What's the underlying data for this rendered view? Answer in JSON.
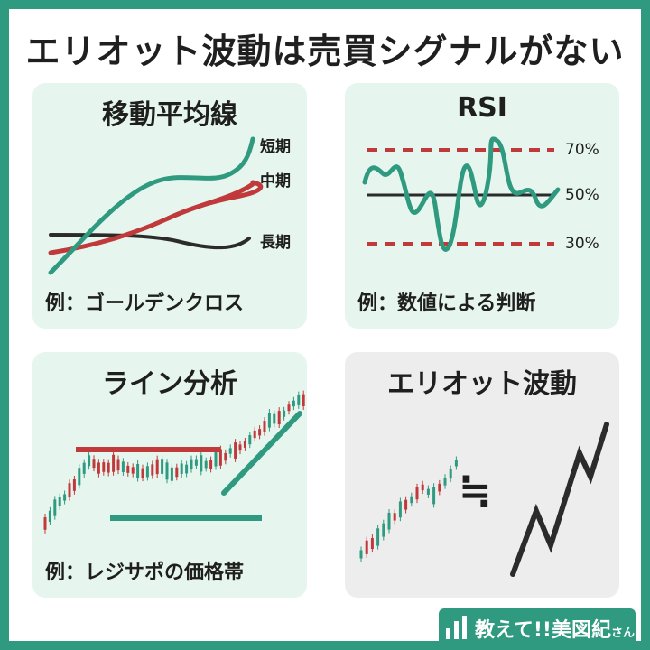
{
  "title": "エリオット波動は売買シグナルがない",
  "panels": {
    "ma": {
      "title": "移動平均線",
      "caption": "例：ゴールデンクロス",
      "labels": {
        "short": "短期",
        "mid": "中期",
        "long": "長期"
      }
    },
    "rsi": {
      "title": "RSI",
      "caption": "例：数値による判断",
      "levels": [
        "70%",
        "50%",
        "30%"
      ]
    },
    "line": {
      "title": "ライン分析",
      "caption": "例：レジサポの価格帯"
    },
    "elliott": {
      "title": "エリオット波動",
      "symbol": "≒"
    }
  },
  "logo": {
    "text": "教えて!!美図紀",
    "suffix": "さん"
  },
  "colors": {
    "frame": "#2f9a80",
    "teal": "#2f9a80",
    "red": "#c0393b",
    "dark": "#2b2b2b",
    "panel_green": "#e6f6ee",
    "panel_gray": "#ededed"
  }
}
